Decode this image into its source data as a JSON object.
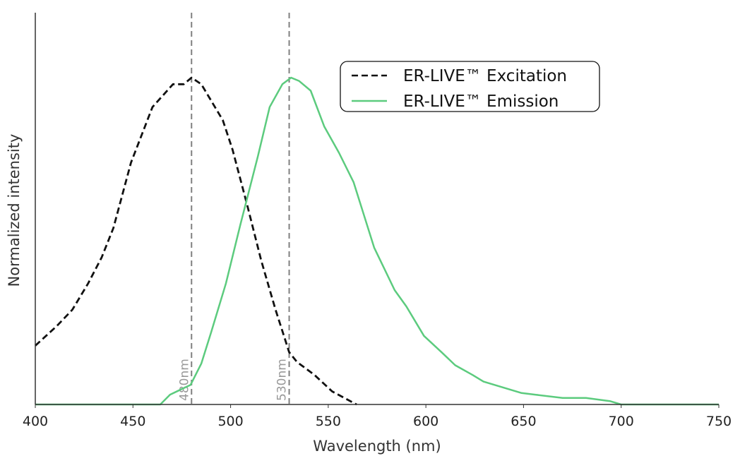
{
  "chart_data": {
    "type": "line",
    "title": "",
    "xlabel": "Wavelength (nm)",
    "ylabel": "Normalized intensity",
    "xlim": [
      400,
      750
    ],
    "ylim": [
      0,
      1
    ],
    "xticks": [
      400,
      450,
      500,
      550,
      600,
      650,
      700,
      750
    ],
    "grid": false,
    "legend_position": "top-right",
    "reference_lines": [
      {
        "x": 480,
        "label": "480nm",
        "color": "#808080"
      },
      {
        "x": 530,
        "label": "530nm",
        "color": "#808080"
      }
    ],
    "series": [
      {
        "name": "ER-LIVE™ Excitation",
        "color": "#111111",
        "style": "dashed",
        "x": [
          400,
          411,
          419,
          427,
          434,
          440,
          449,
          460,
          470.5,
          476,
          480,
          485,
          496,
          501,
          508.5,
          515.7,
          523,
          530,
          534,
          543,
          552,
          564.5
        ],
        "y": [
          0.18,
          0.24,
          0.29,
          0.37,
          0.45,
          0.54,
          0.74,
          0.91,
          0.98,
          0.98,
          1.0,
          0.98,
          0.87,
          0.78,
          0.61,
          0.44,
          0.29,
          0.16,
          0.13,
          0.09,
          0.04,
          0.0
        ]
      },
      {
        "name": "ER-LIVE™ Emission",
        "color": "#5ccb7e",
        "style": "solid",
        "x": [
          400,
          464,
          469,
          479.5,
          485,
          490,
          497.6,
          505,
          514,
          520,
          526.5,
          531,
          535,
          541,
          548,
          555.5,
          563,
          573.5,
          584,
          590,
          599,
          608,
          615,
          624,
          629.5,
          649,
          656,
          670,
          682,
          694.5,
          700,
          750
        ],
        "y": [
          0,
          0,
          0.03,
          0.06,
          0.125,
          0.22,
          0.37,
          0.55,
          0.76,
          0.91,
          0.98,
          1.0,
          0.99,
          0.96,
          0.85,
          0.77,
          0.68,
          0.48,
          0.35,
          0.3,
          0.21,
          0.16,
          0.12,
          0.09,
          0.07,
          0.035,
          0.03,
          0.02,
          0.02,
          0.01,
          0,
          0
        ]
      }
    ]
  }
}
